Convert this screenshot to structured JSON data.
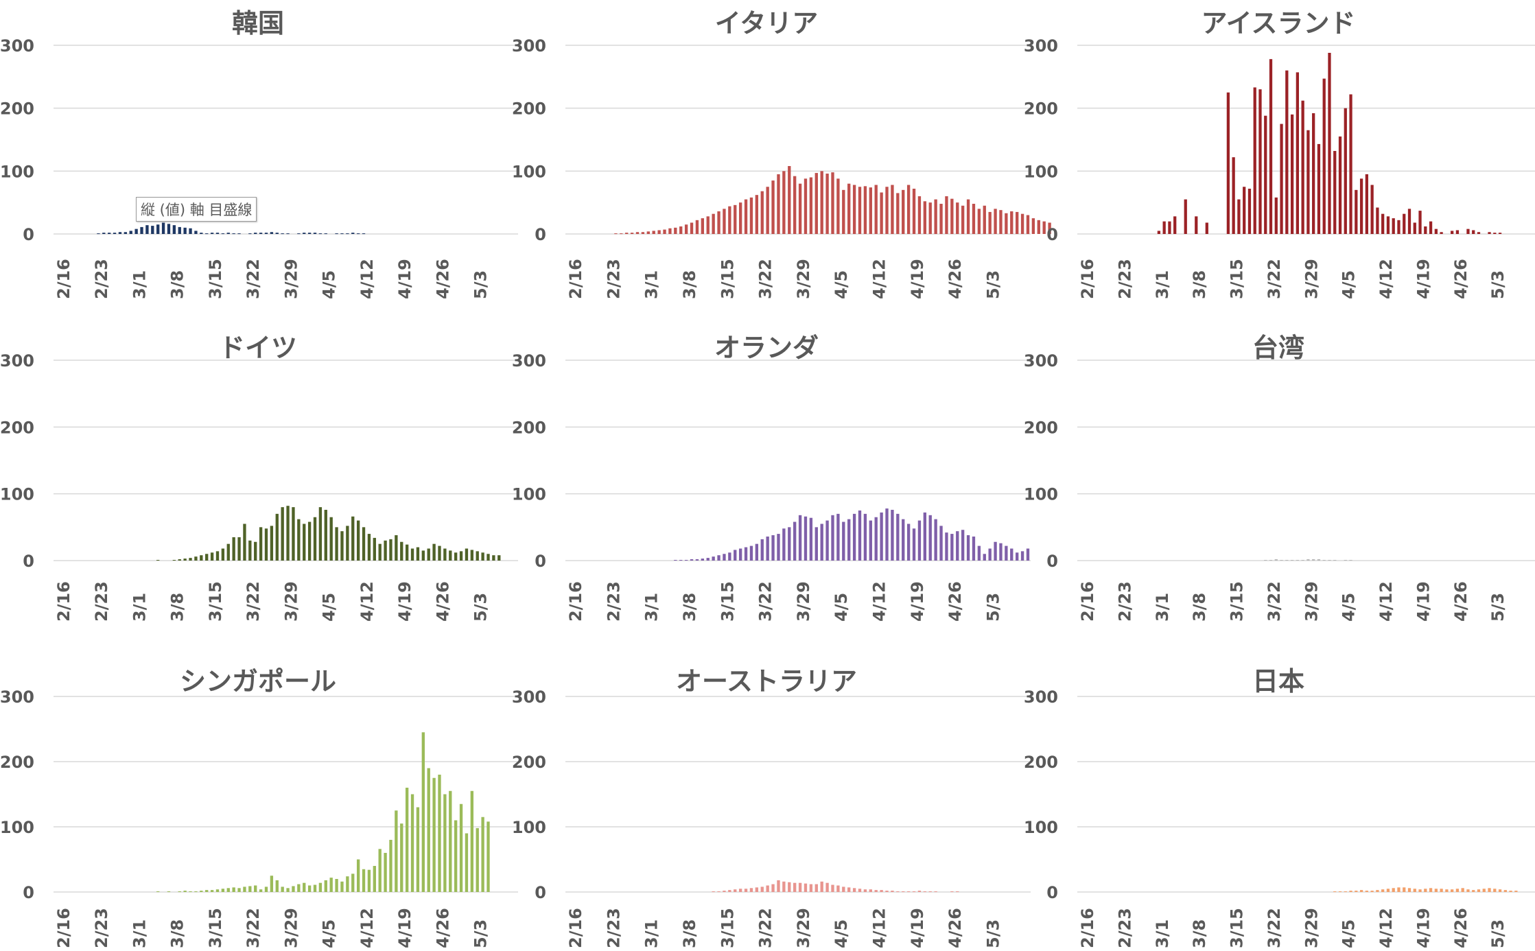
{
  "tooltip": "縦 (値) 軸 目盛線",
  "chart_data": [
    {
      "type": "bar",
      "title": "韓国",
      "color": "#1f3864",
      "ylim": [
        0,
        300
      ],
      "yticks": [
        0,
        100,
        200,
        300
      ],
      "xtick_labels": [
        "2/16",
        "2/23",
        "3/1",
        "3/8",
        "3/15",
        "3/22",
        "3/29",
        "4/5",
        "4/12",
        "4/19",
        "4/26",
        "5/3"
      ],
      "x_start": "2/16",
      "grid": true,
      "values": [
        0,
        0,
        0,
        0,
        0,
        0,
        0,
        1,
        2,
        2,
        2,
        3,
        3,
        5,
        8,
        11,
        14,
        13,
        15,
        18,
        16,
        14,
        11,
        10,
        9,
        5,
        2,
        1,
        2,
        2,
        1,
        2,
        1,
        1,
        0,
        1,
        2,
        2,
        2,
        3,
        2,
        1,
        1,
        0,
        1,
        2,
        2,
        2,
        1,
        1,
        0,
        1,
        1,
        1,
        2,
        1,
        1,
        0,
        0,
        0,
        0,
        0,
        0,
        0,
        0,
        0,
        0,
        0,
        0,
        0,
        0,
        0,
        0,
        0,
        0,
        0,
        0,
        0,
        0,
        0,
        0
      ]
    },
    {
      "type": "bar",
      "title": "イタリア",
      "color": "#c0504d",
      "ylim": [
        0,
        300
      ],
      "yticks": [
        0,
        100,
        200,
        300
      ],
      "xtick_labels": [
        "2/16",
        "2/23",
        "3/1",
        "3/8",
        "3/15",
        "3/22",
        "3/29",
        "4/5",
        "4/12",
        "4/19",
        "4/26",
        "5/3"
      ],
      "x_start": "2/16",
      "grid": true,
      "values": [
        0,
        0,
        0,
        0,
        0,
        0,
        0,
        0,
        1,
        1,
        2,
        2,
        3,
        3,
        4,
        5,
        6,
        7,
        9,
        10,
        12,
        15,
        18,
        22,
        25,
        28,
        32,
        36,
        40,
        44,
        46,
        50,
        55,
        58,
        62,
        68,
        75,
        85,
        95,
        100,
        108,
        92,
        80,
        88,
        90,
        97,
        100,
        96,
        98,
        88,
        70,
        80,
        78,
        75,
        76,
        74,
        78,
        66,
        75,
        78,
        65,
        70,
        78,
        72,
        60,
        52,
        50,
        55,
        48,
        60,
        56,
        50,
        45,
        55,
        48,
        40,
        45,
        35,
        40,
        38,
        33,
        36,
        35,
        32,
        30,
        25,
        22,
        20,
        18
      ]
    },
    {
      "type": "bar",
      "title": "アイスランド",
      "color": "#9b2226",
      "ylim": [
        0,
        300
      ],
      "yticks": [
        0,
        100,
        200,
        300
      ],
      "xtick_labels": [
        "2/16",
        "2/23",
        "3/1",
        "3/8",
        "3/15",
        "3/22",
        "3/29",
        "4/5",
        "4/12",
        "4/19",
        "4/26",
        "5/3"
      ],
      "x_start": "2/16",
      "grid": true,
      "values": [
        0,
        0,
        0,
        0,
        0,
        0,
        0,
        0,
        0,
        0,
        0,
        0,
        0,
        0,
        5,
        20,
        20,
        28,
        0,
        55,
        0,
        28,
        0,
        18,
        0,
        0,
        0,
        225,
        122,
        55,
        75,
        72,
        233,
        230,
        188,
        278,
        58,
        175,
        260,
        190,
        257,
        212,
        165,
        192,
        143,
        247,
        288,
        132,
        155,
        200,
        222,
        70,
        88,
        95,
        78,
        42,
        32,
        28,
        25,
        22,
        32,
        40,
        18,
        37,
        12,
        20,
        8,
        3,
        0,
        5,
        6,
        0,
        8,
        6,
        3,
        0,
        3,
        2,
        2
      ]
    },
    {
      "type": "bar",
      "title": "ドイツ",
      "color": "#4f6228",
      "ylim": [
        0,
        300
      ],
      "yticks": [
        0,
        100,
        200,
        300
      ],
      "xtick_labels": [
        "2/16",
        "2/23",
        "3/1",
        "3/8",
        "3/15",
        "3/22",
        "3/29",
        "4/5",
        "4/12",
        "4/19",
        "4/26",
        "5/3"
      ],
      "x_start": "2/16",
      "grid": true,
      "values": [
        0,
        0,
        0,
        0,
        0,
        0,
        0,
        0,
        0,
        0,
        0,
        0,
        0,
        0,
        0,
        0,
        0,
        0,
        1,
        0,
        0,
        1,
        2,
        3,
        4,
        6,
        8,
        10,
        12,
        14,
        18,
        25,
        35,
        35,
        55,
        30,
        28,
        50,
        48,
        52,
        70,
        80,
        82,
        80,
        62,
        55,
        58,
        65,
        80,
        76,
        65,
        50,
        44,
        52,
        66,
        60,
        50,
        40,
        34,
        25,
        30,
        32,
        38,
        28,
        24,
        18,
        20,
        15,
        18,
        25,
        22,
        18,
        15,
        12,
        14,
        18,
        16,
        14,
        12,
        10,
        8,
        8
      ]
    },
    {
      "type": "bar",
      "title": "オランダ",
      "color": "#7f5fa9",
      "ylim": [
        0,
        300
      ],
      "yticks": [
        0,
        100,
        200,
        300
      ],
      "xtick_labels": [
        "2/16",
        "2/23",
        "3/1",
        "3/8",
        "3/15",
        "3/22",
        "3/29",
        "4/5",
        "4/12",
        "4/19",
        "4/26",
        "5/3"
      ],
      "x_start": "2/16",
      "grid": true,
      "values": [
        0,
        0,
        0,
        0,
        0,
        0,
        0,
        0,
        0,
        0,
        0,
        0,
        0,
        0,
        0,
        0,
        0,
        0,
        0,
        1,
        1,
        1,
        2,
        2,
        3,
        4,
        6,
        8,
        10,
        12,
        16,
        18,
        20,
        22,
        25,
        32,
        36,
        38,
        40,
        48,
        50,
        58,
        68,
        66,
        64,
        50,
        55,
        60,
        68,
        70,
        58,
        62,
        70,
        75,
        70,
        60,
        65,
        72,
        78,
        76,
        70,
        62,
        55,
        48,
        60,
        72,
        68,
        62,
        52,
        42,
        40,
        44,
        46,
        38,
        36,
        22,
        10,
        18,
        28,
        26,
        22,
        18,
        12,
        14,
        18
      ]
    },
    {
      "type": "bar",
      "title": "台湾",
      "color": "#b8b8b8",
      "ylim": [
        0,
        300
      ],
      "yticks": [
        0,
        100,
        200,
        300
      ],
      "xtick_labels": [
        "2/16",
        "2/23",
        "3/1",
        "3/8",
        "3/15",
        "3/22",
        "3/29",
        "4/5",
        "4/12",
        "4/19",
        "4/26",
        "5/3"
      ],
      "x_start": "2/16",
      "grid": true,
      "values": [
        0,
        0,
        0,
        0,
        0,
        0,
        0,
        0,
        0,
        0,
        0,
        0,
        0,
        0,
        0,
        0,
        0,
        0,
        0,
        0,
        0,
        0,
        0,
        0,
        0,
        0,
        0,
        0,
        0,
        0,
        0,
        0,
        0,
        0,
        1,
        1,
        2,
        1,
        1,
        1,
        1,
        1,
        2,
        2,
        2,
        1,
        1,
        1,
        0,
        1,
        1,
        0,
        0,
        0,
        0,
        0,
        0,
        0,
        0,
        0,
        0,
        0,
        0,
        0,
        0,
        0,
        0,
        0,
        0,
        0,
        0,
        0,
        0,
        0,
        0,
        0,
        0,
        0,
        0,
        0,
        0
      ]
    },
    {
      "type": "bar",
      "title": "シンガポール",
      "color": "#9bbb59",
      "ylim": [
        0,
        300
      ],
      "yticks": [
        0,
        100,
        200,
        300
      ],
      "xtick_labels": [
        "2/16",
        "2/23",
        "3/1",
        "3/8",
        "3/15",
        "3/22",
        "3/29",
        "4/5",
        "4/12",
        "4/19",
        "4/26",
        "5/3"
      ],
      "x_start": "2/16",
      "grid": true,
      "values": [
        0,
        0,
        0,
        0,
        0,
        0,
        0,
        0,
        0,
        0,
        0,
        0,
        0,
        0,
        0,
        0,
        0,
        0,
        1,
        0,
        1,
        0,
        1,
        2,
        1,
        1,
        2,
        3,
        3,
        4,
        5,
        6,
        7,
        6,
        8,
        9,
        10,
        4,
        8,
        25,
        18,
        8,
        6,
        9,
        12,
        14,
        10,
        11,
        14,
        18,
        22,
        20,
        16,
        24,
        28,
        50,
        35,
        34,
        40,
        66,
        60,
        80,
        125,
        105,
        160,
        150,
        130,
        245,
        190,
        175,
        180,
        150,
        155,
        110,
        135,
        90,
        155,
        98,
        115,
        108
      ]
    },
    {
      "type": "bar",
      "title": "オーストラリア",
      "color": "#e8958f",
      "ylim": [
        0,
        300
      ],
      "yticks": [
        0,
        100,
        200,
        300
      ],
      "xtick_labels": [
        "2/16",
        "2/23",
        "3/1",
        "3/8",
        "3/15",
        "3/22",
        "3/29",
        "4/5",
        "4/12",
        "4/19",
        "4/26",
        "5/3"
      ],
      "x_start": "2/16",
      "grid": true,
      "values": [
        0,
        0,
        0,
        0,
        0,
        0,
        0,
        0,
        0,
        0,
        0,
        0,
        0,
        0,
        0,
        0,
        0,
        0,
        0,
        0,
        0,
        0,
        0,
        0,
        0,
        0,
        1,
        1,
        2,
        3,
        4,
        5,
        5,
        6,
        7,
        8,
        10,
        12,
        18,
        16,
        15,
        14,
        14,
        13,
        12,
        12,
        16,
        14,
        11,
        10,
        8,
        7,
        6,
        5,
        4,
        4,
        3,
        3,
        2,
        2,
        1,
        1,
        1,
        1,
        2,
        1,
        1,
        1,
        0,
        0,
        1,
        1,
        0,
        0,
        0,
        0,
        0,
        0,
        0,
        0,
        0,
        0
      ]
    },
    {
      "type": "bar",
      "title": "日本",
      "color": "#f2a06b",
      "ylim": [
        0,
        300
      ],
      "yticks": [
        0,
        100,
        200,
        300
      ],
      "xtick_labels": [
        "2/16",
        "2/23",
        "3/1",
        "3/8",
        "3/15",
        "3/22",
        "3/29",
        "4/5",
        "4/12",
        "4/19",
        "4/26",
        "5/3"
      ],
      "x_start": "2/16",
      "grid": true,
      "values": [
        0,
        0,
        0,
        0,
        0,
        0,
        0,
        0,
        0,
        0,
        0,
        0,
        0,
        0,
        0,
        0,
        0,
        0,
        0,
        0,
        0,
        0,
        0,
        0,
        0,
        0,
        0,
        0,
        0,
        0,
        0,
        0,
        0,
        0,
        0,
        0,
        0,
        0,
        0,
        0,
        0,
        0,
        0,
        0,
        0,
        0,
        0,
        1,
        1,
        1,
        2,
        2,
        3,
        2,
        2,
        3,
        4,
        5,
        6,
        7,
        7,
        6,
        5,
        4,
        5,
        6,
        5,
        5,
        4,
        4,
        5,
        6,
        4,
        3,
        4,
        5,
        6,
        5,
        4,
        3,
        2,
        2
      ]
    }
  ]
}
